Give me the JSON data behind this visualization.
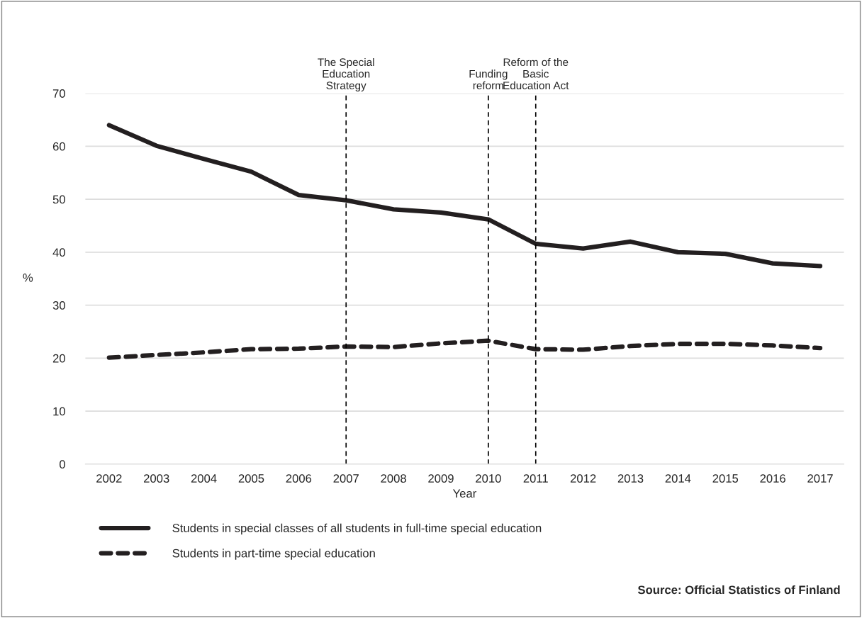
{
  "chart_data": {
    "type": "line",
    "xlabel": "Year",
    "ylabel": "%",
    "categories": [
      "2002",
      "2003",
      "2004",
      "2005",
      "2006",
      "2007",
      "2008",
      "2009",
      "2010",
      "2011",
      "2012",
      "2013",
      "2014",
      "2015",
      "2016",
      "2017"
    ],
    "series": [
      {
        "name": "Students in special classes of all students in full-time special education",
        "color": "#231f20",
        "line_style": "solid",
        "values": [
          64.0,
          60.1,
          57.6,
          55.2,
          50.8,
          49.8,
          48.1,
          47.5,
          46.2,
          41.6,
          40.7,
          42.0,
          40.0,
          39.7,
          37.9,
          37.4
        ]
      },
      {
        "name": "Students in part-time special education",
        "color": "#231f20",
        "line_style": "dashed",
        "values": [
          20.1,
          20.6,
          21.1,
          21.7,
          21.8,
          22.2,
          22.1,
          22.8,
          23.3,
          21.7,
          21.6,
          22.3,
          22.7,
          22.7,
          22.4,
          21.9
        ]
      }
    ],
    "ylim": [
      0,
      70
    ],
    "yticks": [
      0,
      10,
      20,
      30,
      40,
      50,
      60,
      70
    ],
    "grid": "y",
    "legend": "bottom",
    "ref_lines": [
      {
        "axis": "x",
        "value": "2007",
        "label": "The Special\nEducation\nStrategy",
        "color": "#000000",
        "line_style": "dashed"
      },
      {
        "axis": "x",
        "value": "2010",
        "label": "Funding\nreform",
        "color": "#000000",
        "line_style": "dashed"
      },
      {
        "axis": "x",
        "value": "2011",
        "label": "Reform of the\nBasic\nEducation Act",
        "color": "#000000",
        "line_style": "dashed"
      }
    ],
    "annotations": [
      "Source: Official Statistics of Finland"
    ]
  }
}
